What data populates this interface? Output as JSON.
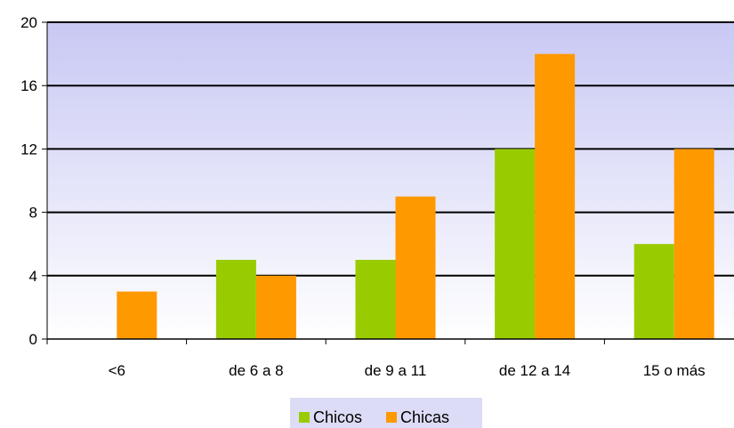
{
  "chart_data": {
    "type": "bar",
    "categories": [
      "<6",
      "de 6 a 8",
      "de 9 a 11",
      "de 12 a 14",
      "15 o más"
    ],
    "series": [
      {
        "name": "Chicos",
        "values": [
          0,
          5,
          5,
          12,
          6
        ],
        "color": "#99cc00"
      },
      {
        "name": "Chicas",
        "values": [
          3,
          4,
          9,
          18,
          12
        ],
        "color": "#ff9900"
      }
    ],
    "ylim": [
      0,
      20
    ],
    "yticks": [
      0,
      4,
      8,
      12,
      16,
      20
    ],
    "grid": true,
    "legend_position": "bottom",
    "colors": {
      "plot_background_top": "#c8c8f4",
      "plot_background_bottom": "#ffffff",
      "legend_background": "#dcdcf6",
      "gridline": "#000000"
    }
  }
}
